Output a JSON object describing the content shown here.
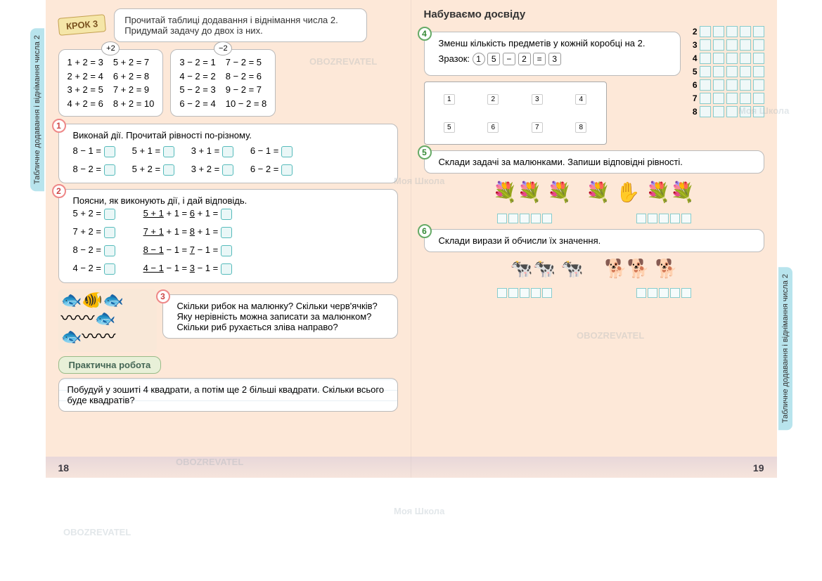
{
  "sideTab": "Табличне додавання і віднімання числа 2",
  "krok": "КРОК 3",
  "krokInstr": "Прочитай таблиці додавання і віднімання числа 2. Придумай задачу до двох із них.",
  "addOp": "+2",
  "subOp": "−2",
  "addTable": {
    "c1": [
      "1 + 2 = 3",
      "2 + 2 = 4",
      "3 + 2 = 5",
      "4 + 2 = 6"
    ],
    "c2": [
      "5 + 2 = 7",
      "6 + 2 = 8",
      "7 + 2 = 9",
      "8 + 2 = 10"
    ]
  },
  "subTable": {
    "c1": [
      "3 − 2 = 1",
      "4 − 2 = 2",
      "5 − 2 = 3",
      "6 − 2 = 4"
    ],
    "c2": [
      "7 − 2 = 5",
      "8 − 2 = 6",
      "9 − 2 = 7",
      "10 − 2 = 8"
    ]
  },
  "t1": {
    "n": "1",
    "txt": "Виконай дії. Прочитай рівності по-різному.",
    "r1": [
      "8 − 1 =",
      "5 + 1 =",
      "3 + 1 =",
      "6 − 1 ="
    ],
    "r2": [
      "8 − 2 =",
      "5 + 2 =",
      "3 + 2 =",
      "6 − 2 ="
    ]
  },
  "t2": {
    "n": "2",
    "txt": "Поясни, як виконують дії, і дай відповідь.",
    "rows": [
      {
        "a": "5 + 2 =",
        "b1": "5 + 1",
        "b2": " + 1 = ",
        "b3": "6",
        "b4": " + 1 ="
      },
      {
        "a": "7 + 2 =",
        "b1": "7 + 1",
        "b2": " + 1 = ",
        "b3": "8",
        "b4": " + 1 ="
      },
      {
        "a": "8 − 2 =",
        "b1": "8 − 1",
        "b2": " − 1 = ",
        "b3": "7",
        "b4": " − 1 ="
      },
      {
        "a": "4 − 2 =",
        "b1": "4 − 1",
        "b2": " − 1 = ",
        "b3": "3",
        "b4": " − 1 ="
      }
    ]
  },
  "t3": {
    "n": "3",
    "txt": "Скільки рибок на малюнку? Скільки черв'ячків? Яку нерівність можна записати за малюнком? Скільки риб рухається зліва направо?"
  },
  "pracLabel": "Практична робота",
  "pracTxt": "Побудуй у зошиті 4 квадрати, а потім ще 2 більші квадрати. Скільки всього буде квадратів?",
  "pnL": "18",
  "pnR": "19",
  "headerR": "Набуваємо досвіду",
  "t4": {
    "n": "4",
    "txt": "Зменш кількість предметів у кожній коробці на 2.",
    "sampleLabel": "Зразок:",
    "sampleN": "1",
    "s1": "5",
    "s2": "−",
    "s3": "2",
    "s4": "=",
    "s5": "3",
    "shelfTop": [
      "1",
      "2",
      "3",
      "4"
    ],
    "shelfBot": [
      "5",
      "6",
      "7",
      "8"
    ]
  },
  "answerNums": [
    "2",
    "3",
    "4",
    "5",
    "6",
    "7",
    "8"
  ],
  "t5": {
    "n": "5",
    "txt": "Склади задачі за малюнками. Запиши відповідні рівності."
  },
  "t6": {
    "n": "6",
    "txt": "Склади вирази й обчисли їх значення."
  },
  "wm": "OBOZREVATEL",
  "wm2": "Моя Школа",
  "colors": {
    "pageBg": "#fde8d8",
    "tab": "#b8e4ed",
    "boxBorder": "#bbbbbb",
    "inputBorder": "#5bb"
  }
}
